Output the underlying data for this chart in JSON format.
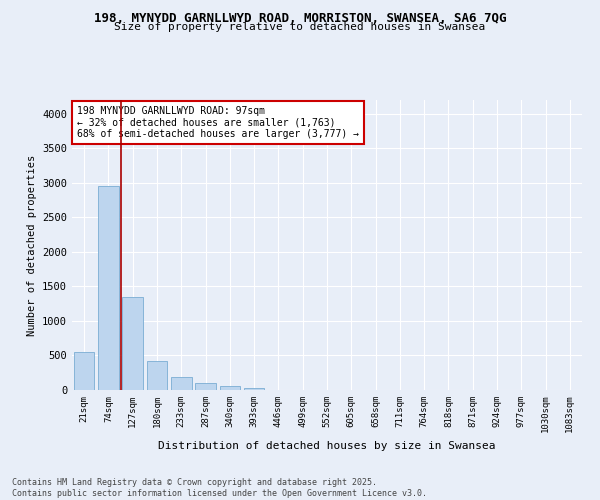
{
  "title_line1": "198, MYNYDD GARNLLWYD ROAD, MORRISTON, SWANSEA, SA6 7QG",
  "title_line2": "Size of property relative to detached houses in Swansea",
  "xlabel": "Distribution of detached houses by size in Swansea",
  "ylabel": "Number of detached properties",
  "categories": [
    "21sqm",
    "74sqm",
    "127sqm",
    "180sqm",
    "233sqm",
    "287sqm",
    "340sqm",
    "393sqm",
    "446sqm",
    "499sqm",
    "552sqm",
    "605sqm",
    "658sqm",
    "711sqm",
    "764sqm",
    "818sqm",
    "871sqm",
    "924sqm",
    "977sqm",
    "1030sqm",
    "1083sqm"
  ],
  "values": [
    550,
    2960,
    1350,
    420,
    190,
    100,
    55,
    30,
    0,
    0,
    0,
    0,
    0,
    0,
    0,
    0,
    0,
    0,
    0,
    0,
    0
  ],
  "bar_color": "#bdd5ee",
  "bar_edge_color": "#7aadd4",
  "vline_color": "#aa0000",
  "annotation_text": "198 MYNYDD GARNLLWYD ROAD: 97sqm\n← 32% of detached houses are smaller (1,763)\n68% of semi-detached houses are larger (3,777) →",
  "annotation_box_color": "#ffffff",
  "annotation_box_edge": "#cc0000",
  "ylim": [
    0,
    4200
  ],
  "yticks": [
    0,
    500,
    1000,
    1500,
    2000,
    2500,
    3000,
    3500,
    4000
  ],
  "footer_line1": "Contains HM Land Registry data © Crown copyright and database right 2025.",
  "footer_line2": "Contains public sector information licensed under the Open Government Licence v3.0.",
  "bg_color": "#e8eef8",
  "grid_color": "#ffffff",
  "plot_bg_color": "#e8eef8"
}
